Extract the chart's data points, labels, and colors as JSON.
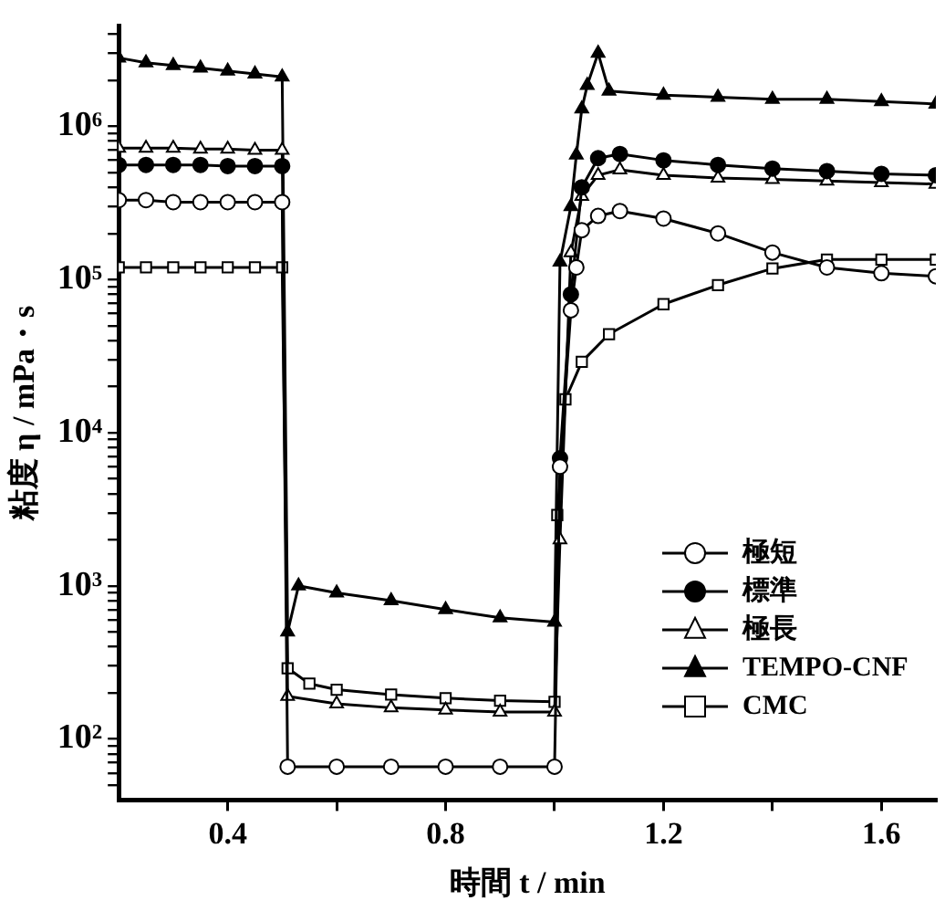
{
  "chart_data": {
    "type": "line",
    "xlabel": "時間 t / min",
    "ylabel": "粘度 η / mPa・s",
    "log": "y",
    "grid": false,
    "legend": "right",
    "line_style": "solid",
    "xlim": [
      0.2,
      1.7
    ],
    "xticks": [
      0.4,
      {
        "value": 0.6,
        "label": null
      },
      0.8,
      {
        "value": 1.0,
        "label": null
      },
      1.2,
      {
        "value": 1.4,
        "label": null
      },
      1.6
    ],
    "ylim": [
      40,
      4500000
    ],
    "yticks": [
      {
        "value": 50,
        "label": null
      },
      {
        "value": 60,
        "label": null
      },
      {
        "value": 70,
        "label": null
      },
      {
        "value": 80,
        "label": null
      },
      {
        "value": 90,
        "label": null
      },
      {
        "value": 100,
        "label": "10²"
      },
      {
        "value": 200,
        "label": null
      },
      {
        "value": 300,
        "label": null
      },
      {
        "value": 400,
        "label": null
      },
      {
        "value": 500,
        "label": null
      },
      {
        "value": 600,
        "label": null
      },
      {
        "value": 700,
        "label": null
      },
      {
        "value": 800,
        "label": null
      },
      {
        "value": 900,
        "label": null
      },
      {
        "value": 1000,
        "label": "10³"
      },
      {
        "value": 2000,
        "label": null
      },
      {
        "value": 3000,
        "label": null
      },
      {
        "value": 4000,
        "label": null
      },
      {
        "value": 5000,
        "label": null
      },
      {
        "value": 6000,
        "label": null
      },
      {
        "value": 7000,
        "label": null
      },
      {
        "value": 8000,
        "label": null
      },
      {
        "value": 9000,
        "label": null
      },
      {
        "value": 10000,
        "label": "10⁴"
      },
      {
        "value": 20000,
        "label": null
      },
      {
        "value": 30000,
        "label": null
      },
      {
        "value": 40000,
        "label": null
      },
      {
        "value": 50000,
        "label": null
      },
      {
        "value": 60000,
        "label": null
      },
      {
        "value": 70000,
        "label": null
      },
      {
        "value": 80000,
        "label": null
      },
      {
        "value": 90000,
        "label": null
      },
      {
        "value": 100000,
        "label": "10⁵"
      },
      {
        "value": 200000,
        "label": null
      },
      {
        "value": 300000,
        "label": null
      },
      {
        "value": 400000,
        "label": null
      },
      {
        "value": 500000,
        "label": null
      },
      {
        "value": 600000,
        "label": null
      },
      {
        "value": 700000,
        "label": null
      },
      {
        "value": 800000,
        "label": null
      },
      {
        "value": 900000,
        "label": null
      },
      {
        "value": 1000000,
        "label": "10⁶"
      },
      {
        "value": 2000000,
        "label": null
      },
      {
        "value": 3000000,
        "label": null
      },
      {
        "value": 4000000,
        "label": null
      }
    ],
    "series": [
      {
        "name": "極短",
        "color": "#ffffff",
        "marker": "circle",
        "x": [
          0.2,
          0.25,
          0.3,
          0.35,
          0.4,
          0.45,
          0.5,
          0.51,
          0.6,
          0.7,
          0.8,
          0.9,
          1.0,
          1.01,
          1.03,
          1.04,
          1.05,
          1.08,
          1.12,
          1.2,
          1.3,
          1.4,
          1.5,
          1.6,
          1.7
        ],
        "values": [
          330000,
          330000,
          320000,
          320000,
          320000,
          320000,
          320000,
          66,
          66,
          66,
          66,
          66,
          66,
          6000,
          63000,
          120000,
          210000,
          260000,
          280000,
          250000,
          200000,
          150000,
          120000,
          110000,
          105000
        ]
      },
      {
        "name": "標準",
        "color": "#000000",
        "marker": "circle",
        "x": [
          0.2,
          0.25,
          0.3,
          0.35,
          0.4,
          0.45,
          0.5,
          0.51,
          1.01,
          1.03,
          1.05,
          1.08,
          1.12,
          1.2,
          1.3,
          1.4,
          1.5,
          1.6,
          1.7
        ],
        "values": [
          560000,
          560000,
          560000,
          560000,
          550000,
          550000,
          550000,
          null,
          6800,
          80000,
          400000,
          620000,
          660000,
          600000,
          560000,
          530000,
          510000,
          490000,
          480000
        ]
      },
      {
        "name": "極長",
        "color": "#ffffff",
        "marker": "triangle",
        "x": [
          0.2,
          0.25,
          0.3,
          0.35,
          0.4,
          0.45,
          0.5,
          0.51,
          0.6,
          0.7,
          0.8,
          0.9,
          1.0,
          1.01,
          1.03,
          1.05,
          1.08,
          1.12,
          1.2,
          1.3,
          1.4,
          1.5,
          1.6,
          1.7
        ],
        "values": [
          720000,
          720000,
          720000,
          710000,
          710000,
          700000,
          700000,
          190,
          170,
          160,
          155,
          150,
          150,
          2000,
          150000,
          350000,
          480000,
          520000,
          480000,
          460000,
          450000,
          440000,
          430000,
          420000
        ]
      },
      {
        "name": "TEMPO-CNF",
        "color": "#000000",
        "marker": "triangle",
        "x": [
          0.2,
          0.25,
          0.3,
          0.35,
          0.4,
          0.45,
          0.5,
          0.51,
          0.53,
          0.6,
          0.7,
          0.8,
          0.9,
          1.0,
          1.01,
          1.03,
          1.04,
          1.05,
          1.06,
          1.08,
          1.1,
          1.2,
          1.3,
          1.4,
          1.5,
          1.6,
          1.7
        ],
        "values": [
          2800000,
          2600000,
          2500000,
          2400000,
          2300000,
          2200000,
          2100000,
          500,
          1000,
          900,
          800,
          700,
          620,
          580,
          130000,
          300000,
          650000,
          1300000,
          1850000,
          3000000,
          1700000,
          1600000,
          1550000,
          1500000,
          1500000,
          1450000,
          1400000
        ]
      },
      {
        "name": "CMC",
        "color": "#ffffff",
        "marker": "square",
        "x": [
          0.2,
          0.25,
          0.3,
          0.35,
          0.4,
          0.45,
          0.5,
          0.51,
          0.55,
          0.6,
          0.7,
          0.8,
          0.9,
          1.0,
          1.005,
          1.02,
          1.05,
          1.1,
          1.2,
          1.3,
          1.4,
          1.5,
          1.6,
          1.7
        ],
        "values": [
          120000,
          120000,
          120000,
          120000,
          120000,
          120000,
          120000,
          290,
          230,
          210,
          195,
          185,
          178,
          175,
          2900,
          16500,
          29000,
          44000,
          69000,
          92000,
          118000,
          135000,
          135000,
          135000
        ]
      }
    ]
  }
}
